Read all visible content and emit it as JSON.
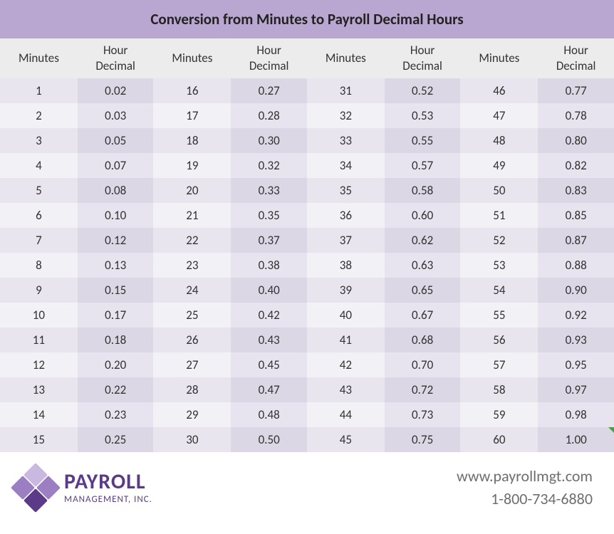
{
  "title": "Conversion from Minutes to Payroll Decimal Hours",
  "styling": {
    "title_bg": "#b9a7d1",
    "title_color": "#222222",
    "title_fontsize": 21,
    "header_bg": "#ececec",
    "header_fontsize": 17,
    "row_a_bg": "#e8e5ee",
    "row_b_bg": "#f2f1f5",
    "decimal_col_bg_a": "#dcd7e5",
    "decimal_col_bg_b": "#e7e3ef",
    "cell_fontsize": 17,
    "text_color": "#333333",
    "footer_text_color": "#6e6e6e",
    "footer_fontsize": 22,
    "logo_brand_color": "#5b3b87",
    "logo_light": "#c9b8e0",
    "logo_mid": "#9b7fc2",
    "logo_dark": "#5b3b87",
    "logo_main_fontsize": 30,
    "logo_sub_fontsize": 13,
    "marker_color": "#4a9e4a"
  },
  "columns": [
    "Minutes",
    "Hour\nDecimal",
    "Minutes",
    "Hour\nDecimal",
    "Minutes",
    "Hour\nDecimal",
    "Minutes",
    "Hour\nDecimal"
  ],
  "rows": [
    [
      "1",
      "0.02",
      "16",
      "0.27",
      "31",
      "0.52",
      "46",
      "0.77"
    ],
    [
      "2",
      "0.03",
      "17",
      "0.28",
      "32",
      "0.53",
      "47",
      "0.78"
    ],
    [
      "3",
      "0.05",
      "18",
      "0.30",
      "33",
      "0.55",
      "48",
      "0.80"
    ],
    [
      "4",
      "0.07",
      "19",
      "0.32",
      "34",
      "0.57",
      "49",
      "0.82"
    ],
    [
      "5",
      "0.08",
      "20",
      "0.33",
      "35",
      "0.58",
      "50",
      "0.83"
    ],
    [
      "6",
      "0.10",
      "21",
      "0.35",
      "36",
      "0.60",
      "51",
      "0.85"
    ],
    [
      "7",
      "0.12",
      "22",
      "0.37",
      "37",
      "0.62",
      "52",
      "0.87"
    ],
    [
      "8",
      "0.13",
      "23",
      "0.38",
      "38",
      "0.63",
      "53",
      "0.88"
    ],
    [
      "9",
      "0.15",
      "24",
      "0.40",
      "39",
      "0.65",
      "54",
      "0.90"
    ],
    [
      "10",
      "0.17",
      "25",
      "0.42",
      "40",
      "0.67",
      "55",
      "0.92"
    ],
    [
      "11",
      "0.18",
      "26",
      "0.43",
      "41",
      "0.68",
      "56",
      "0.93"
    ],
    [
      "12",
      "0.20",
      "27",
      "0.45",
      "42",
      "0.70",
      "57",
      "0.95"
    ],
    [
      "13",
      "0.22",
      "28",
      "0.47",
      "43",
      "0.72",
      "58",
      "0.97"
    ],
    [
      "14",
      "0.23",
      "29",
      "0.48",
      "44",
      "0.73",
      "59",
      "0.98"
    ],
    [
      "15",
      "0.25",
      "30",
      "0.50",
      "45",
      "0.75",
      "60",
      "1.00"
    ]
  ],
  "marker_cell": {
    "row": 14,
    "col": 7
  },
  "logo": {
    "main": "PAYROLL",
    "sub": "MANAGEMENT, INC."
  },
  "contact": {
    "website": "www.payrollmgt.com",
    "phone": "1-800-734-6880"
  }
}
